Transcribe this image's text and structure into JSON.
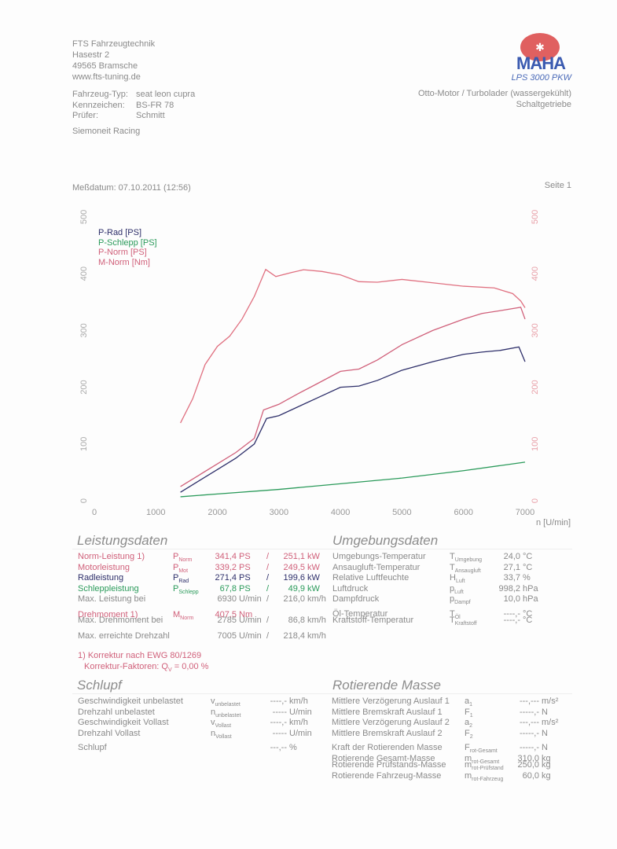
{
  "header": {
    "company": [
      "FTS Fahrzeugtechnik",
      "Hasestr 2",
      "49565 Bramsche",
      "www.fts-tuning.de"
    ],
    "vehicle": [
      [
        "Fahrzeug-Typ:",
        "seat leon cupra"
      ],
      [
        "Kennzeichen:",
        "BS-FR 78"
      ],
      [
        "Prüfer:",
        "Schmitt"
      ]
    ],
    "team": "Siemoneit Racing",
    "logo_text": "MAHA",
    "model": "LPS 3000 PKW",
    "engine": "Otto-Motor / Turbolader (wassergekühlt)",
    "gearbox": "Schaltgetriebe",
    "date": "Meßdatum: 07.10.2011 (12:56)",
    "page": "Seite 1"
  },
  "chart_data": {
    "type": "line",
    "xlabel": "n [U/min]",
    "xlim": [
      0,
      7000
    ],
    "ylim": [
      0,
      500
    ],
    "x_ticks": [
      "0",
      "1000",
      "2000",
      "3000",
      "4000",
      "5000",
      "6000",
      "7000"
    ],
    "y_ticks": [
      "0",
      "100",
      "200",
      "300",
      "400",
      "500"
    ],
    "legend": "top-left",
    "series": [
      {
        "name": "P-Rad [PS]",
        "color": "#2e2f6a",
        "x": [
          1400,
          1700,
          2000,
          2300,
          2600,
          2800,
          3000,
          3300,
          3600,
          4000,
          4300,
          4600,
          5000,
          5500,
          6000,
          6300,
          6600,
          6900,
          7000
        ],
        "y": [
          15,
          35,
          55,
          75,
          100,
          145,
          150,
          165,
          180,
          200,
          202,
          212,
          230,
          245,
          258,
          262,
          265,
          271,
          245
        ]
      },
      {
        "name": "P-Schlepp [PS]",
        "color": "#2a9a5a",
        "x": [
          1400,
          2000,
          3000,
          4000,
          5000,
          6000,
          7000
        ],
        "y": [
          7,
          12,
          20,
          30,
          40,
          53,
          68
        ]
      },
      {
        "name": "P-Norm [PS]",
        "color": "#d0607a",
        "x": [
          1400,
          1700,
          2000,
          2300,
          2600,
          2750,
          3000,
          3300,
          3600,
          4000,
          4300,
          4600,
          5000,
          5500,
          6000,
          6300,
          6600,
          6930,
          7000
        ],
        "y": [
          25,
          45,
          65,
          85,
          110,
          160,
          170,
          188,
          205,
          228,
          232,
          248,
          275,
          300,
          320,
          330,
          335,
          341,
          320
        ]
      },
      {
        "name": "M-Norm [Nm]",
        "color": "#e07080",
        "x": [
          1400,
          1600,
          1800,
          2000,
          2200,
          2400,
          2600,
          2785,
          2950,
          3200,
          3400,
          3700,
          4000,
          4300,
          4600,
          5000,
          5500,
          6000,
          6500,
          6800,
          6930,
          7000
        ],
        "y": [
          137,
          180,
          240,
          272,
          290,
          320,
          360,
          407.5,
          395,
          402,
          407,
          404,
          398,
          386,
          385,
          390,
          384,
          378,
          375,
          365,
          352,
          340
        ]
      }
    ]
  },
  "leistung": {
    "title": "Leistungsdaten",
    "rows": [
      [
        "Norm-Leistung 1)",
        "P",
        "Norm",
        "341,4",
        "PS",
        "/",
        "251,1",
        "kW"
      ],
      [
        "Motorleistung",
        "P",
        "Mot",
        "339,2",
        "PS",
        "/",
        "249,5",
        "kW"
      ],
      [
        "Radleistung",
        "P",
        "Rad",
        "271,4",
        "PS",
        "/",
        "199,6",
        "kW"
      ],
      [
        "Schleppleistung",
        "P",
        "Schlepp",
        "67,8",
        "PS",
        "/",
        "49,9",
        "kW"
      ],
      [
        "Max. Leistung bei",
        "",
        "",
        "6930",
        "U/min",
        "/",
        "216,0",
        "km/h"
      ],
      [
        "Drehmoment 1)",
        "M",
        "Norm",
        "407,5",
        "Nm",
        "",
        "",
        ""
      ],
      [
        "Max. Drehmoment bei",
        "",
        "",
        "2785",
        "U/min",
        "/",
        "86,8",
        "km/h"
      ],
      [
        "Max. erreichte Drehzahl",
        "",
        "",
        "7005",
        "U/min",
        "/",
        "218,4",
        "km/h"
      ]
    ],
    "note1": "1) Korrektur nach EWG 80/1269",
    "note2": "Korrektur-Faktoren: Q",
    "note2_sub": "V",
    "note2_val": "=   0,00 %"
  },
  "umgebung": {
    "title": "Umgebungsdaten",
    "rows": [
      [
        "Umgebungs-Temperatur",
        "T",
        "Umgebung",
        "24,0",
        "°C"
      ],
      [
        "Ansaugluft-Temperatur",
        "T",
        "Ansaugluft",
        "27,1",
        "°C"
      ],
      [
        "Relative Luftfeuchte",
        "H",
        "Luft",
        "33,7",
        "%"
      ],
      [
        "Luftdruck",
        "p",
        "Luft",
        "998,2",
        "hPa"
      ],
      [
        "Dampfdruck",
        "p",
        "Dampf",
        "10,0",
        "hPa"
      ],
      [
        "Öl-Temperatur",
        "T",
        "Öl",
        "----,-",
        "°C"
      ],
      [
        "Kraftstoff-Temperatur",
        "T",
        "Kraftstoff",
        "----,-",
        "°C"
      ]
    ]
  },
  "schlupf": {
    "title": "Schlupf",
    "rows": [
      [
        "Geschwindigkeit unbelastet",
        "v",
        "unbelastet",
        "----,-",
        "km/h"
      ],
      [
        "Drehzahl unbelastet",
        "n",
        "unbelastet",
        "-----",
        "U/min"
      ],
      [
        "Geschwindigkeit Vollast",
        "v",
        "Vollast",
        "----,-",
        "km/h"
      ],
      [
        "Drehzahl Vollast",
        "n",
        "Vollast",
        "-----",
        "U/min"
      ],
      [
        "Schlupf",
        "",
        "",
        "---,--",
        "%"
      ]
    ]
  },
  "masse": {
    "title": "Rotierende Masse",
    "rows": [
      [
        "Mittlere Verzögerung Auslauf 1",
        "a",
        "1",
        "---,---",
        "m/s²"
      ],
      [
        "Mittlere Bremskraft Auslauf 1",
        "F",
        "1",
        "-----,-",
        "N"
      ],
      [
        "Mittlere Verzögerung Auslauf 2",
        "a",
        "2",
        "---,---",
        "m/s²"
      ],
      [
        "Mittlere Bremskraft Auslauf 2",
        "F",
        "2",
        "-----,-",
        "N"
      ],
      [
        "Kraft der Rotierenden Masse",
        "F",
        "rot-Gesamt",
        "-----,-",
        "N"
      ],
      [
        "Rotierende Gesamt-Masse",
        "m",
        "rot-Gesamt",
        "310,0",
        "kg"
      ],
      [
        "Rotierende Prüfstands-Masse",
        "m",
        "rot-Prüfstand",
        "250,0",
        "kg"
      ],
      [
        "Rotierende Fahrzeug-Masse",
        "m",
        "rot-Fahrzeug",
        "60,0",
        "kg"
      ]
    ]
  }
}
